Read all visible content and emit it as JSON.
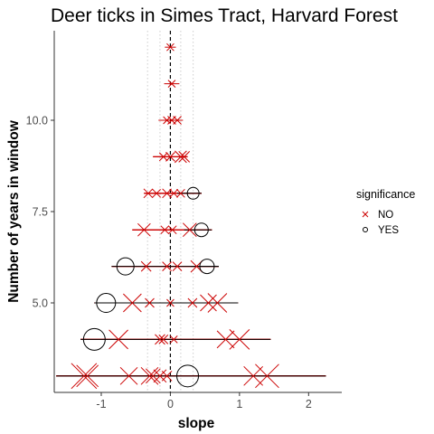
{
  "chart_data": {
    "type": "scatter",
    "title": "Deer ticks in Simes Tract, Harvard Forest",
    "xlabel": "slope",
    "ylabel": "Number of years in window",
    "xlim": [
      -1.68,
      2.48
    ],
    "ylim": [
      2.55,
      12.45
    ],
    "x_ticks": [
      -1,
      0,
      1,
      2
    ],
    "y_ticks": [
      5.0,
      7.5,
      10.0
    ],
    "y_tick_labels": [
      "5.0",
      "7.5",
      "10.0"
    ],
    "vlines_dashed": [
      0
    ],
    "vlines_dotted": [
      -0.33,
      -0.15,
      0.15,
      0.33
    ],
    "grid": false,
    "legend": {
      "title": "significance",
      "position": "right",
      "entries": [
        {
          "label": "NO",
          "symbol": "x",
          "color": "#cc0000"
        },
        {
          "label": "YES",
          "symbol": "circle",
          "color": "#000000"
        }
      ]
    },
    "points": [
      {
        "y": 12,
        "x": 0.0,
        "xmin": -0.08,
        "xmax": 0.08,
        "sig": "NO",
        "size": 0.2
      },
      {
        "y": 11,
        "x": 0.02,
        "xmin": -0.09,
        "xmax": 0.13,
        "sig": "NO",
        "size": 0.2
      },
      {
        "y": 10,
        "x": -0.05,
        "xmin": -0.17,
        "xmax": 0.18,
        "sig": "NO",
        "size": 0.2
      },
      {
        "y": 10,
        "x": 0.02,
        "xmin": -0.17,
        "xmax": 0.18,
        "sig": "NO",
        "size": 0.25
      },
      {
        "y": 10,
        "x": 0.1,
        "xmin": -0.17,
        "xmax": 0.18,
        "sig": "NO",
        "size": 0.25
      },
      {
        "y": 9,
        "x": -0.1,
        "xmin": -0.25,
        "xmax": 0.25,
        "sig": "NO",
        "size": 0.25
      },
      {
        "y": 9,
        "x": 0.0,
        "xmin": -0.25,
        "xmax": 0.25,
        "sig": "NO",
        "size": 0.3
      },
      {
        "y": 9,
        "x": 0.15,
        "xmin": -0.25,
        "xmax": 0.25,
        "sig": "NO",
        "size": 0.45
      },
      {
        "y": 9,
        "x": 0.2,
        "xmin": -0.25,
        "xmax": 0.25,
        "sig": "NO",
        "size": 0.4
      },
      {
        "y": 8,
        "x": -0.32,
        "xmin": -0.38,
        "xmax": 0.45,
        "sig": "NO",
        "size": 0.3
      },
      {
        "y": 8,
        "x": -0.2,
        "xmin": -0.38,
        "xmax": 0.45,
        "sig": "NO",
        "size": 0.25
      },
      {
        "y": 8,
        "x": -0.05,
        "xmin": -0.38,
        "xmax": 0.45,
        "sig": "NO",
        "size": 0.3
      },
      {
        "y": 8,
        "x": 0.05,
        "xmin": -0.38,
        "xmax": 0.45,
        "sig": "NO",
        "size": 0.25
      },
      {
        "y": 8,
        "x": 0.15,
        "xmin": -0.38,
        "xmax": 0.45,
        "sig": "NO",
        "size": 0.25
      },
      {
        "y": 8,
        "x": 0.33,
        "xmin": 0.1,
        "xmax": 0.45,
        "sig": "YES",
        "size": 0.45
      },
      {
        "y": 7,
        "x": -0.38,
        "xmin": -0.55,
        "xmax": 0.6,
        "sig": "NO",
        "size": 0.5
      },
      {
        "y": 7,
        "x": -0.08,
        "xmin": -0.55,
        "xmax": 0.6,
        "sig": "NO",
        "size": 0.25
      },
      {
        "y": 7,
        "x": 0.03,
        "xmin": -0.55,
        "xmax": 0.6,
        "sig": "NO",
        "size": 0.25
      },
      {
        "y": 7,
        "x": 0.28,
        "xmin": -0.55,
        "xmax": 0.6,
        "sig": "NO",
        "size": 0.55
      },
      {
        "y": 7,
        "x": 0.45,
        "xmin": 0.2,
        "xmax": 0.6,
        "sig": "YES",
        "size": 0.55
      },
      {
        "y": 6,
        "x": -0.65,
        "xmin": -0.85,
        "xmax": 0.7,
        "sig": "YES",
        "size": 0.75
      },
      {
        "y": 6,
        "x": -0.35,
        "xmin": -0.85,
        "xmax": 0.7,
        "sig": "NO",
        "size": 0.35
      },
      {
        "y": 6,
        "x": -0.05,
        "xmin": -0.85,
        "xmax": 0.7,
        "sig": "NO",
        "size": 0.3
      },
      {
        "y": 6,
        "x": 0.1,
        "xmin": -0.85,
        "xmax": 0.7,
        "sig": "NO",
        "size": 0.3
      },
      {
        "y": 6,
        "x": 0.38,
        "xmin": -0.85,
        "xmax": 0.7,
        "sig": "NO",
        "size": 0.45
      },
      {
        "y": 6,
        "x": 0.53,
        "xmin": 0.3,
        "xmax": 0.7,
        "sig": "YES",
        "size": 0.6
      },
      {
        "y": 5,
        "x": -0.93,
        "xmin": -1.1,
        "xmax": 0.98,
        "sig": "YES",
        "size": 0.85
      },
      {
        "y": 5,
        "x": -0.55,
        "xmin": -1.1,
        "xmax": 0.98,
        "sig": "NO",
        "size": 0.8
      },
      {
        "y": 5,
        "x": -0.3,
        "xmin": -1.1,
        "xmax": 0.98,
        "sig": "NO",
        "size": 0.3
      },
      {
        "y": 5,
        "x": 0.0,
        "xmin": -1.1,
        "xmax": 0.98,
        "sig": "NO",
        "size": 0.2
      },
      {
        "y": 5,
        "x": 0.32,
        "xmin": -1.1,
        "xmax": 0.98,
        "sig": "NO",
        "size": 0.3
      },
      {
        "y": 5,
        "x": 0.55,
        "xmin": -1.1,
        "xmax": 0.98,
        "sig": "NO",
        "size": 0.7
      },
      {
        "y": 5,
        "x": 0.68,
        "xmin": -1.1,
        "xmax": 0.98,
        "sig": "NO",
        "size": 0.85
      },
      {
        "y": 4,
        "x": -1.1,
        "xmin": -1.3,
        "xmax": 1.45,
        "sig": "YES",
        "size": 1.0
      },
      {
        "y": 4,
        "x": -0.75,
        "xmin": -1.3,
        "xmax": 1.45,
        "sig": "NO",
        "size": 0.85
      },
      {
        "y": 4,
        "x": -0.15,
        "xmin": -1.3,
        "xmax": 1.45,
        "sig": "NO",
        "size": 0.35
      },
      {
        "y": 4,
        "x": -0.1,
        "xmin": -1.3,
        "xmax": 1.45,
        "sig": "NO",
        "size": 0.3
      },
      {
        "y": 4,
        "x": 0.05,
        "xmin": -1.3,
        "xmax": 1.45,
        "sig": "NO",
        "size": 0.2
      },
      {
        "y": 4,
        "x": 0.8,
        "xmin": -1.3,
        "xmax": 1.45,
        "sig": "NO",
        "size": 0.75
      },
      {
        "y": 4,
        "x": 1.0,
        "xmin": -1.3,
        "xmax": 1.45,
        "sig": "NO",
        "size": 0.9
      },
      {
        "y": 3,
        "x": -1.25,
        "xmin": -1.65,
        "xmax": 2.25,
        "sig": "NO",
        "size": 1.2
      },
      {
        "y": 3,
        "x": -1.2,
        "xmin": -1.65,
        "xmax": 2.25,
        "sig": "NO",
        "size": 1.0
      },
      {
        "y": 3,
        "x": -0.6,
        "xmin": -1.65,
        "xmax": 2.25,
        "sig": "NO",
        "size": 0.75
      },
      {
        "y": 3,
        "x": -0.3,
        "xmin": -1.65,
        "xmax": 2.25,
        "sig": "NO",
        "size": 0.75
      },
      {
        "y": 3,
        "x": -0.25,
        "xmin": -1.65,
        "xmax": 2.25,
        "sig": "NO",
        "size": 0.6
      },
      {
        "y": 3,
        "x": -0.15,
        "xmin": -1.65,
        "xmax": 2.25,
        "sig": "NO",
        "size": 0.5
      },
      {
        "y": 3,
        "x": -0.05,
        "xmin": -1.65,
        "xmax": 2.25,
        "sig": "NO",
        "size": 0.35
      },
      {
        "y": 3,
        "x": 0.25,
        "xmin": -1.65,
        "xmax": 2.25,
        "sig": "YES",
        "size": 1.0
      },
      {
        "y": 3,
        "x": 1.2,
        "xmin": -1.65,
        "xmax": 2.25,
        "sig": "NO",
        "size": 0.85
      },
      {
        "y": 3,
        "x": 1.4,
        "xmin": -1.65,
        "xmax": 2.25,
        "sig": "NO",
        "size": 1.1
      }
    ],
    "colors": {
      "no": "#cc0000",
      "yes": "#000000",
      "axis": "#333333",
      "tick_label": "#4d4d4d",
      "reference_line": "#000000",
      "dotted_line": "#cccccc"
    }
  }
}
